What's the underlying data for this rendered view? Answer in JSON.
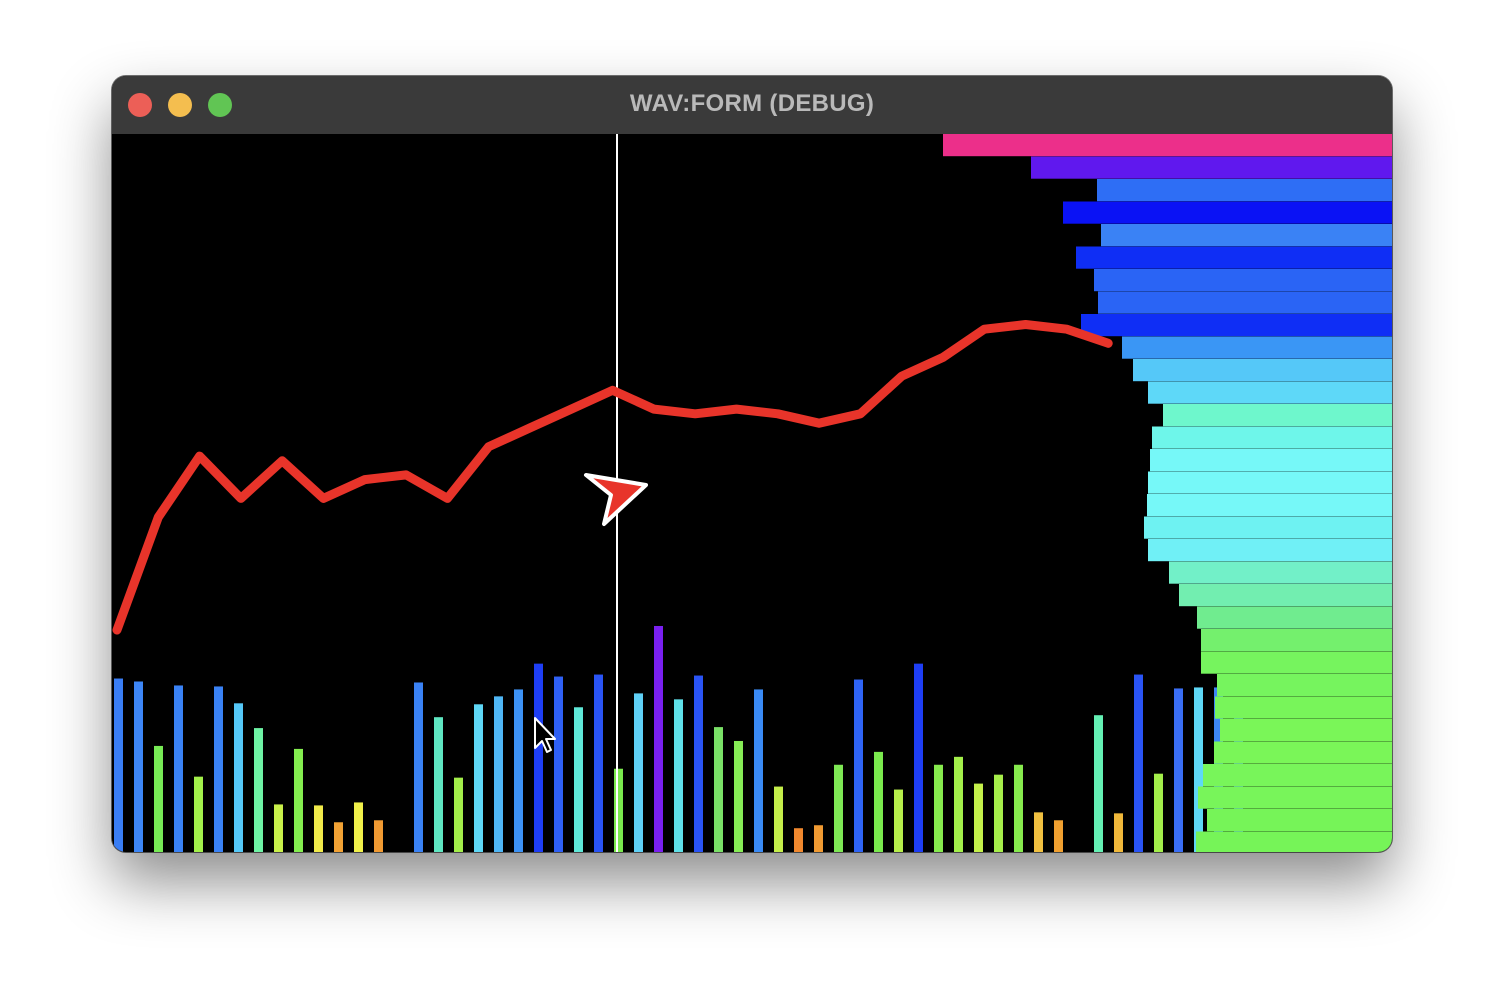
{
  "window": {
    "title": "WAV:FORM (DEBUG)"
  },
  "colors": {
    "line": "#e8342a",
    "playhead": "#ffffff",
    "cursor_fill": "#e8342a",
    "cursor_stroke": "#ffffff"
  },
  "chart_data": [
    {
      "type": "bar",
      "orientation": "vertical",
      "ylim": [
        0,
        230
      ],
      "values": [
        175,
        172,
        107,
        168,
        76,
        167,
        150,
        125,
        48,
        104,
        47,
        30,
        50,
        32,
        0,
        171,
        136,
        75,
        149,
        157,
        164,
        190,
        177,
        146,
        179,
        84,
        160,
        228,
        154,
        178,
        126,
        112,
        164,
        66,
        24,
        27,
        88,
        174,
        101,
        63,
        190,
        88,
        96,
        69,
        78,
        88,
        40,
        32,
        0,
        138,
        39,
        179,
        79,
        165,
        166,
        166,
        140
      ],
      "colors": [
        "#3a7ef5",
        "#3d86f6",
        "#77ea55",
        "#3a82f5",
        "#a3f04a",
        "#3a82f5",
        "#55c8f8",
        "#6ef3a5",
        "#c9f04a",
        "#84ee4f",
        "#f0ea4a",
        "#f2a234",
        "#f0f04a",
        "#f09a32",
        "#000000",
        "#3a82f5",
        "#5fe6c2",
        "#a3ee4a",
        "#5ed7f6",
        "#4fb6f5",
        "#3d92f5",
        "#1e3ef5",
        "#2f60f5",
        "#5fe8d8",
        "#2a54f5",
        "#7ae94d",
        "#5fd0f6",
        "#7a20f0",
        "#5fe0e8",
        "#2a54f5",
        "#7ae067",
        "#86ec55",
        "#3a8af5",
        "#c4ee4a",
        "#f0882e",
        "#f09a32",
        "#7ee854",
        "#2f64f5",
        "#7ae94d",
        "#b6ee4a",
        "#1e3ef5",
        "#86ea4d",
        "#a3ef4a",
        "#c4f04a",
        "#a6ee4a",
        "#86ea4d",
        "#f0c040",
        "#f0a030",
        "#000000",
        "#64f0b4",
        "#f0b83a",
        "#2a54f5",
        "#a3ee4a",
        "#3a6ef5",
        "#5ed7f6",
        "#3d86f6",
        "#3a82f5"
      ]
    },
    {
      "type": "bar",
      "orientation": "horizontal",
      "xlim": [
        0,
        450
      ],
      "values": [
        449,
        361,
        295,
        329,
        291,
        316,
        298,
        294,
        311,
        270,
        259,
        244,
        229,
        240,
        242,
        244,
        245,
        248,
        244,
        223,
        213,
        195,
        191,
        191,
        175,
        177,
        172,
        178,
        189,
        194,
        185,
        196
      ],
      "colors": [
        "#ec2f8a",
        "#6018ee",
        "#2e6ef5",
        "#0a12f5",
        "#3a82f5",
        "#0f2ef5",
        "#2a64f5",
        "#2a64f5",
        "#0f2ef5",
        "#3a96f5",
        "#55c8f8",
        "#5ed8f8",
        "#6ef7cc",
        "#6ef6ea",
        "#76f8f8",
        "#76f8f8",
        "#76f8f8",
        "#6ef2f2",
        "#70f0f6",
        "#72f0c8",
        "#72eeb0",
        "#70ec8f",
        "#74f06d",
        "#76f45e",
        "#76f45e",
        "#78f55a",
        "#7af658",
        "#7af658",
        "#78f55a",
        "#78f55a",
        "#76f458",
        "#76f458"
      ]
    },
    {
      "type": "line",
      "ylim": [
        0,
        100
      ],
      "values": [
        20,
        44,
        57,
        48,
        56,
        48,
        52,
        53,
        48,
        59,
        63,
        67,
        71,
        67,
        66,
        67,
        66,
        64,
        66,
        74,
        78,
        84,
        85,
        84,
        81
      ]
    }
  ]
}
